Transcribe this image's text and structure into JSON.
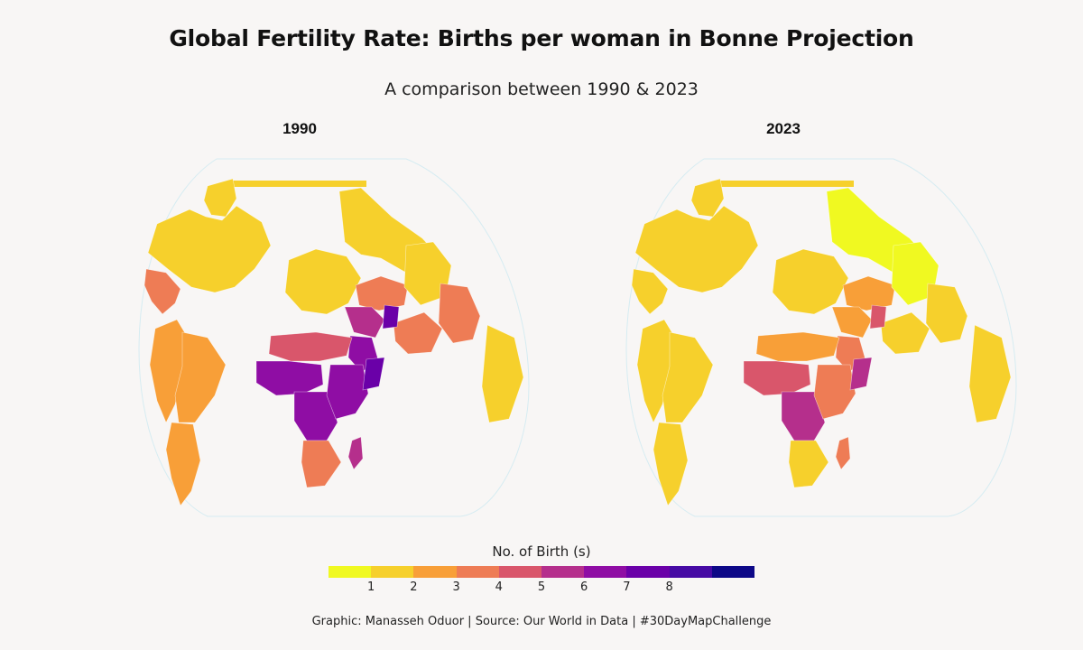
{
  "header": {
    "title": "Global Fertility Rate: Births per woman in Bonne Projection",
    "subtitle": "A comparison between 1990 & 2023"
  },
  "panels": [
    {
      "title": "1990"
    },
    {
      "title": "2023"
    }
  ],
  "legend": {
    "title": "No. of Birth (s)",
    "ticks": [
      "1",
      "2",
      "3",
      "4",
      "5",
      "6",
      "7",
      "8"
    ],
    "colors": [
      "#f0f921",
      "#f6d02c",
      "#f89f38",
      "#ee7c55",
      "#d9566b",
      "#b52f8c",
      "#8f0da4",
      "#6a00a8",
      "#460aa4",
      "#0d0887"
    ]
  },
  "footer": "Graphic: Manasseh Oduor | Source: Our World in Data | #30DayMapChallenge",
  "map_data": {
    "projection": "Bonne",
    "variable": "Births per woman",
    "regions_1990": [
      {
        "region": "North America",
        "value": 1.9
      },
      {
        "region": "Greenland",
        "value": 2.4
      },
      {
        "region": "Central America",
        "value": 3.6
      },
      {
        "region": "South America (south)",
        "value": 2.8
      },
      {
        "region": "South America (north/Andes)",
        "value": 3.4
      },
      {
        "region": "Brazil",
        "value": 2.8
      },
      {
        "region": "Europe",
        "value": 1.7
      },
      {
        "region": "Russia",
        "value": 1.9
      },
      {
        "region": "Central Asia",
        "value": 3.7
      },
      {
        "region": "Middle East",
        "value": 5.5
      },
      {
        "region": "Saudi Arabia/Yemen",
        "value": 6.8
      },
      {
        "region": "North Africa",
        "value": 4.8
      },
      {
        "region": "Sahel / West Africa",
        "value": 6.8
      },
      {
        "region": "Central Africa",
        "value": 6.9
      },
      {
        "region": "East Africa",
        "value": 7.0
      },
      {
        "region": "Somalia",
        "value": 7.8
      },
      {
        "region": "Southern Africa",
        "value": 3.8
      },
      {
        "region": "South Asia",
        "value": 4.0
      },
      {
        "region": "Afghanistan",
        "value": 7.6
      },
      {
        "region": "China",
        "value": 2.4
      },
      {
        "region": "Southeast Asia",
        "value": 3.5
      },
      {
        "region": "Madagascar",
        "value": 6.1
      },
      {
        "region": "Australia",
        "value": 1.9
      }
    ],
    "regions_2023": [
      {
        "region": "North America",
        "value": 1.6
      },
      {
        "region": "Greenland",
        "value": 1.8
      },
      {
        "region": "Central America",
        "value": 2.0
      },
      {
        "region": "South America (south)",
        "value": 1.9
      },
      {
        "region": "South America (north/Andes)",
        "value": 2.2
      },
      {
        "region": "Brazil",
        "value": 1.6
      },
      {
        "region": "Europe",
        "value": 1.5
      },
      {
        "region": "Russia",
        "value": 1.4
      },
      {
        "region": "Central Asia",
        "value": 2.9
      },
      {
        "region": "Middle East",
        "value": 2.7
      },
      {
        "region": "Saudi Arabia/Yemen",
        "value": 3.5
      },
      {
        "region": "North Africa",
        "value": 2.7
      },
      {
        "region": "Sahel / West Africa",
        "value": 5.0
      },
      {
        "region": "Central Africa",
        "value": 5.6
      },
      {
        "region": "East Africa",
        "value": 4.2
      },
      {
        "region": "Somalia",
        "value": 6.1
      },
      {
        "region": "Southern Africa",
        "value": 2.3
      },
      {
        "region": "South Asia",
        "value": 2.0
      },
      {
        "region": "Afghanistan",
        "value": 4.5
      },
      {
        "region": "China",
        "value": 1.0
      },
      {
        "region": "Southeast Asia",
        "value": 2.0
      },
      {
        "region": "Madagascar",
        "value": 3.8
      },
      {
        "region": "Australia",
        "value": 1.6
      }
    ]
  }
}
